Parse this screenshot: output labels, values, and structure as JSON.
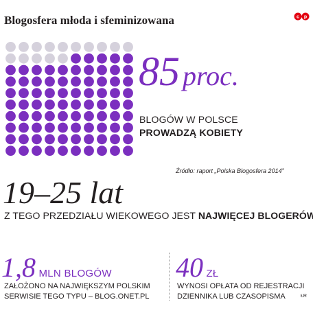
{
  "header": {
    "title": "Blogosfera młoda i sfeminizowana",
    "logo_text": "cp"
  },
  "colors": {
    "accent": "#7b2fbf",
    "inactive_dot": "#d5d1dc",
    "text": "#231f20"
  },
  "chart_data": {
    "type": "waffle",
    "total": 100,
    "highlighted": 85,
    "highlighted_color": "#7b2fbf",
    "rest_color": "#d5d1dc"
  },
  "share": {
    "value": "85",
    "unit": "proc.",
    "line1": "BLOGÓW W POLSCE",
    "line2": "PROWADZĄ KOBIETY"
  },
  "source": "Źródło: raport „Polska Blogosfera 2014”",
  "age": {
    "range": "19–25 lat",
    "desc_plain": "Z TEGO PRZEDZIAŁU WIEKOWEGO JEST ",
    "desc_bold": "NAJWIĘCEJ BLOGERÓW"
  },
  "stat_blogs": {
    "value": "1,8",
    "unit": "MLN BLOGÓW",
    "line1": "ZAŁOŻONO NA NAJWIĘKSZYM POLSKIM",
    "line2": "SERWISIE TEGO TYPU – BLOG.ONET.PL"
  },
  "stat_fee": {
    "value": "40",
    "unit": "ZŁ",
    "line1": "WYNOSI OPŁATA OD REJESTRACJI",
    "line2": "DZIENNIKA LUB CZASOPISMA"
  },
  "credit": "ŁR"
}
